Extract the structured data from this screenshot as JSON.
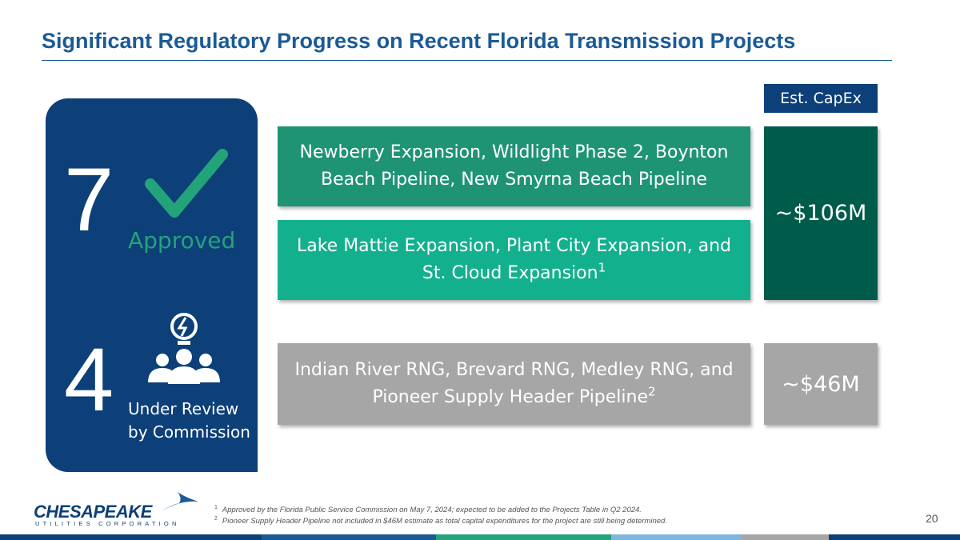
{
  "header": {
    "title": "Significant Regulatory Progress on Recent Florida Transmission Projects"
  },
  "status": {
    "approved": {
      "count": "7",
      "label": "Approved"
    },
    "review": {
      "count": "4",
      "label_lines": [
        "Under Review",
        "by Commission"
      ]
    }
  },
  "capex_header": "Est. CapEx",
  "projects": [
    {
      "text": "Newberry Expansion, Wildlight Phase 2, Boynton Beach Pipeline, New Smyrna Beach Pipeline"
    },
    {
      "text": "Lake Mattie Expansion, Plant City Expansion, and St. Cloud Expansion",
      "note": "1"
    },
    {
      "text": "Indian River RNG, Brevard RNG, Medley RNG, and Pioneer Supply Header Pipeline",
      "note": "2"
    }
  ],
  "capex": [
    "~$106M",
    "~$46M"
  ],
  "footnotes": [
    {
      "marker": "1",
      "text": "Approved by the Florida Public Service Commission on May 7, 2024; expected to be added to the Projects Table in Q2 2024."
    },
    {
      "marker": "2",
      "text": "Pioneer Supply Header Pipeline not included in $46M estimate as total capital expenditures for the project are still being determined."
    }
  ],
  "logo": {
    "name": "CHESAPEAKE",
    "sub": "UTILITIES CORPORATION"
  },
  "page_number": "20"
}
